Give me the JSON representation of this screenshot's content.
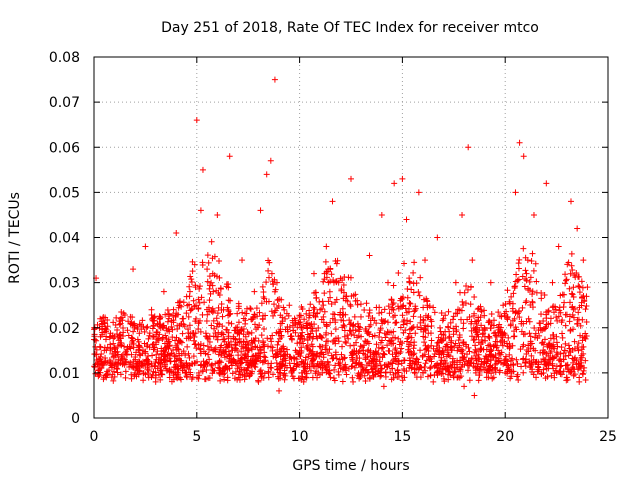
{
  "chart_data": {
    "type": "scatter",
    "title": "Day 251 of 2018, Rate Of TEC Index for receiver mtco",
    "xlabel": "GPS time / hours",
    "ylabel": "ROTI / TECUs",
    "xlim": [
      0,
      25
    ],
    "ylim": [
      0,
      0.08
    ],
    "x_ticks": [
      "0",
      "5",
      "10",
      "15",
      "20",
      "25"
    ],
    "y_ticks": [
      "0",
      "0.01",
      "0.02",
      "0.03",
      "0.04",
      "0.05",
      "0.06",
      "0.07",
      "0.08"
    ],
    "grid": true,
    "marker": "plus",
    "color": "#ff0000",
    "series": [
      {
        "x": [
          0.1,
          0.3,
          0.5,
          0.8,
          1.0,
          1.3,
          1.6,
          1.9,
          2.2,
          2.5,
          2.8,
          3.1,
          3.4,
          3.7,
          4.0,
          4.3,
          4.6,
          4.9,
          5.0,
          5.2,
          5.3,
          5.5,
          5.8,
          6.0,
          6.3,
          6.6,
          6.9,
          7.2,
          7.5,
          7.8,
          8.1,
          8.4,
          8.6,
          8.8,
          8.9,
          9.2,
          9.5,
          9.8,
          10.1,
          10.4,
          10.7,
          11.0,
          11.3,
          11.6,
          11.9,
          12.2,
          12.5,
          12.8,
          13.1,
          13.4,
          13.7,
          14.0,
          14.3,
          14.6,
          14.9,
          15.0,
          15.2,
          15.5,
          15.8,
          16.1,
          16.4,
          16.7,
          17.0,
          17.3,
          17.6,
          17.9,
          18.2,
          18.4,
          18.7,
          19.0,
          19.3,
          19.6,
          19.9,
          20.2,
          20.5,
          20.7,
          20.9,
          21.1,
          21.4,
          21.7,
          22.0,
          22.3,
          22.6,
          22.9,
          23.2,
          23.5,
          23.8,
          24.0
        ],
        "y": [
          0.031,
          0.022,
          0.015,
          0.012,
          0.018,
          0.022,
          0.014,
          0.033,
          0.016,
          0.038,
          0.024,
          0.019,
          0.028,
          0.014,
          0.041,
          0.022,
          0.018,
          0.034,
          0.066,
          0.046,
          0.055,
          0.033,
          0.028,
          0.045,
          0.024,
          0.058,
          0.02,
          0.035,
          0.015,
          0.028,
          0.046,
          0.054,
          0.057,
          0.075,
          0.03,
          0.012,
          0.025,
          0.015,
          0.02,
          0.016,
          0.032,
          0.024,
          0.038,
          0.048,
          0.03,
          0.018,
          0.053,
          0.026,
          0.015,
          0.036,
          0.012,
          0.045,
          0.03,
          0.052,
          0.026,
          0.053,
          0.044,
          0.02,
          0.05,
          0.035,
          0.016,
          0.04,
          0.022,
          0.018,
          0.03,
          0.045,
          0.06,
          0.035,
          0.018,
          0.02,
          0.03,
          0.016,
          0.025,
          0.014,
          0.05,
          0.061,
          0.058,
          0.035,
          0.045,
          0.02,
          0.052,
          0.03,
          0.038,
          0.015,
          0.048,
          0.042,
          0.035,
          0.029
        ]
      },
      {
        "x": [
          0.2,
          0.6,
          1.1,
          1.5,
          2.0,
          2.6,
          3.0,
          3.5,
          4.1,
          4.5,
          5.1,
          5.6,
          6.1,
          6.5,
          7.0,
          7.6,
          8.0,
          8.5,
          9.0,
          9.6,
          10.2,
          10.6,
          11.1,
          11.5,
          12.0,
          12.6,
          13.0,
          13.6,
          14.1,
          14.5,
          15.1,
          15.6,
          16.0,
          16.5,
          17.1,
          17.5,
          18.0,
          18.5,
          19.1,
          19.5,
          20.0,
          20.6,
          21.0,
          21.5,
          22.1,
          22.5,
          23.0,
          23.6
        ],
        "y": [
          0.012,
          0.009,
          0.011,
          0.013,
          0.01,
          0.012,
          0.008,
          0.011,
          0.009,
          0.012,
          0.01,
          0.013,
          0.011,
          0.009,
          0.012,
          0.01,
          0.008,
          0.009,
          0.006,
          0.01,
          0.008,
          0.012,
          0.01,
          0.009,
          0.011,
          0.008,
          0.01,
          0.012,
          0.007,
          0.011,
          0.009,
          0.012,
          0.01,
          0.008,
          0.011,
          0.009,
          0.007,
          0.005,
          0.009,
          0.011,
          0.01,
          0.012,
          0.013,
          0.009,
          0.011,
          0.01,
          0.009,
          0.008
        ]
      }
    ]
  }
}
